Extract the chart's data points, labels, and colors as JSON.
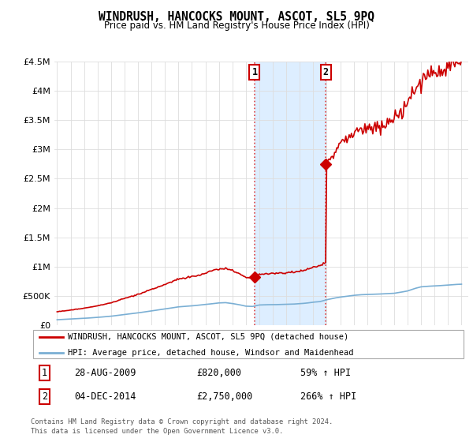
{
  "title": "WINDRUSH, HANCOCKS MOUNT, ASCOT, SL5 9PQ",
  "subtitle": "Price paid vs. HM Land Registry's House Price Index (HPI)",
  "ylim": [
    0,
    4500000
  ],
  "yticks": [
    0,
    500000,
    1000000,
    1500000,
    2000000,
    2500000,
    3000000,
    3500000,
    4000000,
    4500000
  ],
  "ytick_labels": [
    "£0",
    "£500K",
    "£1M",
    "£1.5M",
    "£2M",
    "£2.5M",
    "£3M",
    "£3.5M",
    "£4M",
    "£4.5M"
  ],
  "sale1_date": "28-AUG-2009",
  "sale1_price": 820000,
  "sale1_label": "£820,000",
  "sale1_hpi": "59% ↑ HPI",
  "sale2_date": "04-DEC-2014",
  "sale2_price": 2750000,
  "sale2_label": "£2,750,000",
  "sale2_hpi": "266% ↑ HPI",
  "sale1_x": 2009.65,
  "sale2_x": 2014.92,
  "legend_line1": "WINDRUSH, HANCOCKS MOUNT, ASCOT, SL5 9PQ (detached house)",
  "legend_line2": "HPI: Average price, detached house, Windsor and Maidenhead",
  "footer1": "Contains HM Land Registry data © Crown copyright and database right 2024.",
  "footer2": "This data is licensed under the Open Government Licence v3.0.",
  "red_color": "#cc0000",
  "blue_color": "#7aafd4",
  "shade_color": "#ddeeff",
  "background_color": "#ffffff"
}
